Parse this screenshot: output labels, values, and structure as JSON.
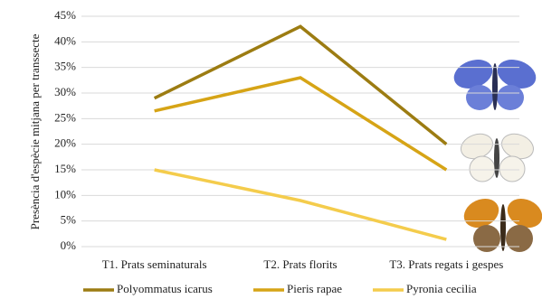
{
  "chart_data": {
    "type": "line",
    "y_label": "Presència d'espècie mitjana per transsecte",
    "categories": [
      "T1. Prats seminaturals",
      "T2. Prats florits",
      "T3. Prats regats i gespes"
    ],
    "series": [
      {
        "name": "Polyommatus icarus",
        "color": "#9c7c12",
        "values": [
          29,
          43,
          20
        ]
      },
      {
        "name": "Pieris rapae",
        "color": "#d6a416",
        "values": [
          26.5,
          33,
          15
        ]
      },
      {
        "name": "Pyronia cecilia",
        "color": "#f4cc4c",
        "values": [
          15,
          9,
          1.4
        ]
      }
    ],
    "ylim": [
      0,
      45
    ],
    "yticks": [
      {
        "value": 0,
        "label": "0%"
      },
      {
        "value": 5,
        "label": "5%"
      },
      {
        "value": 10,
        "label": "10%"
      },
      {
        "value": 15,
        "label": "15%"
      },
      {
        "value": 20,
        "label": "20%"
      },
      {
        "value": 25,
        "label": "25%"
      },
      {
        "value": 30,
        "label": "30%"
      },
      {
        "value": 35,
        "label": "35%"
      },
      {
        "value": 40,
        "label": "40%"
      },
      {
        "value": 45,
        "label": "45%"
      }
    ],
    "grid": true
  }
}
